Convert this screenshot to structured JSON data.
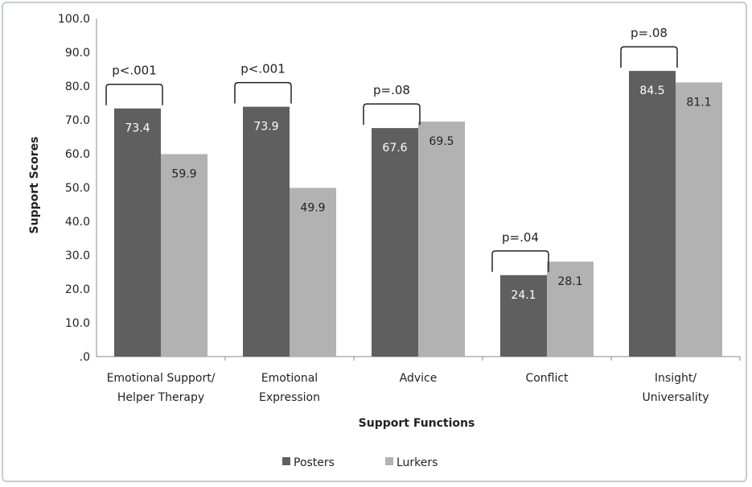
{
  "chart_data": {
    "type": "bar",
    "title": "",
    "xlabel": "Support Functions",
    "ylabel": "Support Scores",
    "ylim": [
      0,
      100
    ],
    "yticks": [
      ".0",
      "10.0",
      "20.0",
      "30.0",
      "40.0",
      "50.0",
      "60.0",
      "70.0",
      "80.0",
      "90.0",
      "100.0"
    ],
    "categories": [
      [
        "Emotional Support/",
        "Helper Therapy"
      ],
      [
        "Emotional",
        "Expression"
      ],
      [
        "Advice"
      ],
      [
        "Conflict"
      ],
      [
        "Insight/",
        "Universality"
      ]
    ],
    "series": [
      {
        "name": "Posters",
        "color": "#5f5f5f",
        "values": [
          73.4,
          73.9,
          67.6,
          24.1,
          84.5
        ]
      },
      {
        "name": "Lurkers",
        "color": "#b2b2b2",
        "values": [
          59.9,
          49.9,
          69.5,
          28.1,
          81.1
        ]
      }
    ],
    "annotations": [
      "p<.001",
      "p<.001",
      "p=.08",
      "p=.04",
      "p=.08"
    ],
    "grid": false,
    "legend": "bottom"
  }
}
